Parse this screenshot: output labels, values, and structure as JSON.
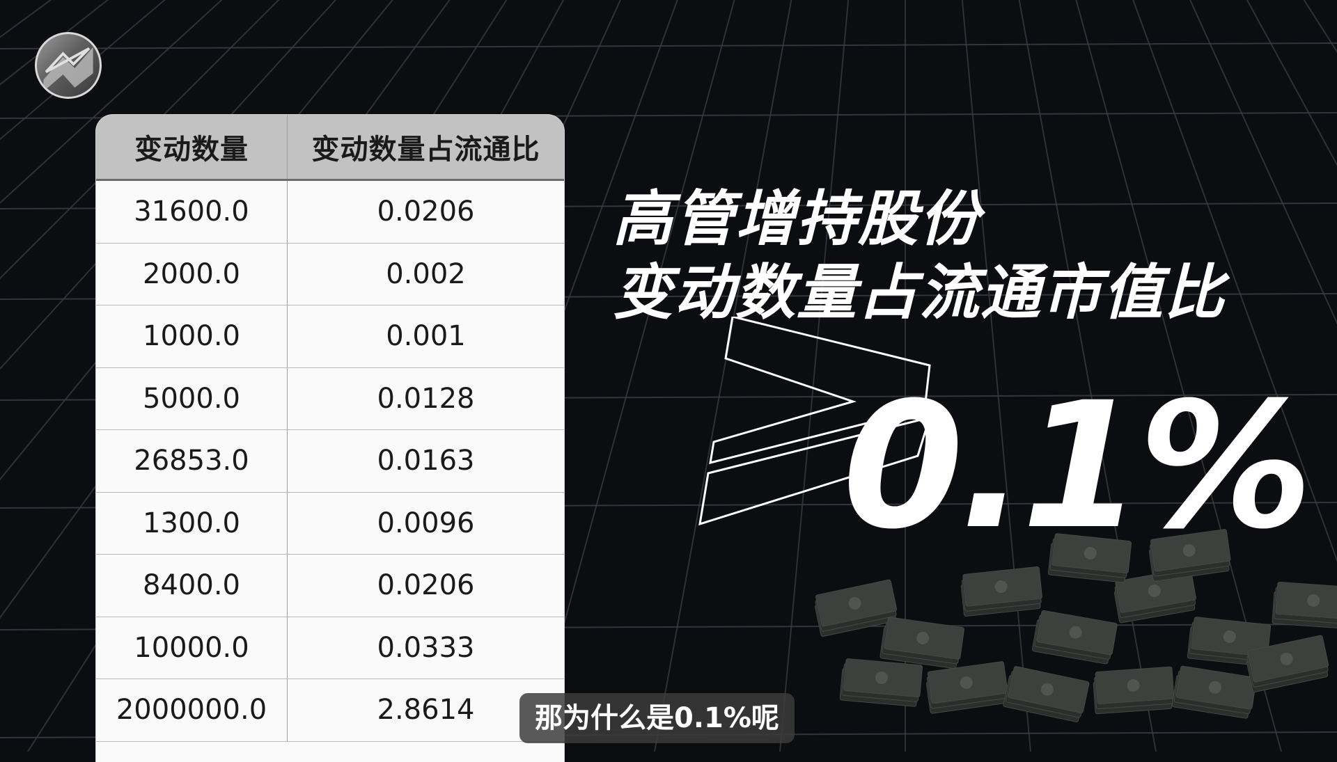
{
  "table": {
    "headers": [
      "变动数量",
      "变动数量占流通比"
    ],
    "rows": [
      [
        "31600.0",
        "0.0206"
      ],
      [
        "2000.0",
        "0.002"
      ],
      [
        "1000.0",
        "0.001"
      ],
      [
        "5000.0",
        "0.0128"
      ],
      [
        "26853.0",
        "0.0163"
      ],
      [
        "1300.0",
        "0.0096"
      ],
      [
        "8400.0",
        "0.0206"
      ],
      [
        "10000.0",
        "0.0333"
      ],
      [
        "2000000.0",
        "2.8614"
      ]
    ]
  },
  "title": {
    "line1": "高管增持股份",
    "line2": "变动数量占流通市值比"
  },
  "threshold": {
    "operator": "≥",
    "value": "0.1%"
  },
  "caption": "那为什么是0.1%呢",
  "icons": {
    "logo": "channel-logo-icon",
    "operator": "greater-equal-icon",
    "decoration": "money-pile-icon"
  },
  "colors": {
    "background": "#0b0d10",
    "grid": "#3a3d42",
    "table_header": "#c2c2c2",
    "table_body": "#fafafa",
    "text_light": "#ffffff"
  }
}
